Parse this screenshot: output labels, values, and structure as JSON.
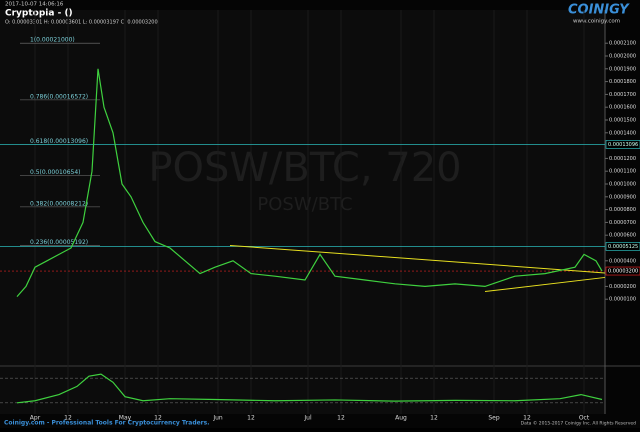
{
  "header": {
    "timestamp": "2017-10-07 14:06:16",
    "exchange": "Cryptopia - ()",
    "ohlc": "O: 0.00003301 H: 0.00003601 L: 0.00003197 C: 0.00003200",
    "logo": "COINIGY",
    "url": "www.coinigy.com"
  },
  "watermark": {
    "main": "POSW/BTC, 720",
    "sub": "POSW/BTC"
  },
  "footer": {
    "left": "Coinigy.com - Professional Tools For Cryptocurrency Traders.",
    "right": "Data © 2015-2017 Coinigy Inc. All Rights Reserved"
  },
  "chart_data": [
    {
      "type": "line",
      "color": "#3fd13f",
      "x": [
        -6,
        -3,
        0,
        4,
        8,
        12,
        16,
        19,
        21,
        23,
        26,
        29,
        32,
        36,
        40,
        45,
        50,
        55,
        60,
        66,
        72,
        80,
        90,
        95,
        100,
        110,
        120,
        130,
        140,
        150,
        160,
        170,
        180,
        183,
        187,
        189
      ],
      "values": [
        1.2e-05,
        2e-05,
        3.5e-05,
        4e-05,
        4.5e-05,
        5e-05,
        7e-05,
        0.00011,
        0.00019,
        0.00016,
        0.00014,
        0.0001,
        9e-05,
        7e-05,
        5.5e-05,
        5e-05,
        4e-05,
        3e-05,
        3.5e-05,
        4e-05,
        3e-05,
        2.8e-05,
        2.5e-05,
        4.5e-05,
        2.8e-05,
        2.5e-05,
        2.2e-05,
        2e-05,
        2.2e-05,
        2e-05,
        2.8e-05,
        3e-05,
        3.5e-05,
        4.5e-05,
        4e-05,
        3.2e-05
      ],
      "xlim": [
        -8,
        190
      ],
      "ylim": [
        0,
        0.00022
      ],
      "xticks": [
        {
          "value": 0,
          "label": "Apr"
        },
        {
          "value": 11,
          "label": "12"
        },
        {
          "value": 30,
          "label": "May"
        },
        {
          "value": 41,
          "label": "12"
        },
        {
          "value": 61,
          "label": "Jun"
        },
        {
          "value": 72,
          "label": "12"
        },
        {
          "value": 91,
          "label": "Jul"
        },
        {
          "value": 102,
          "label": "12"
        },
        {
          "value": 122,
          "label": "Aug"
        },
        {
          "value": 133,
          "label": "12"
        },
        {
          "value": 153,
          "label": "Sep"
        },
        {
          "value": 164,
          "label": "12"
        },
        {
          "value": 183,
          "label": "Oct"
        }
      ],
      "yticks": [
        {
          "value": 1e-05,
          "label": "0.0000100"
        },
        {
          "value": 2e-05,
          "label": "0.0000200"
        },
        {
          "value": 4e-05,
          "label": "0.0000400"
        },
        {
          "value": 6e-05,
          "label": "0.0000600"
        },
        {
          "value": 7e-05,
          "label": "0.0000700"
        },
        {
          "value": 8e-05,
          "label": "0.0000800"
        },
        {
          "value": 9e-05,
          "label": "0.0000900"
        },
        {
          "value": 0.0001,
          "label": "0.0001000"
        },
        {
          "value": 0.00011,
          "label": "0.0001100"
        },
        {
          "value": 0.00012,
          "label": "0.0001200"
        },
        {
          "value": 0.00014,
          "label": "0.0001400"
        },
        {
          "value": 0.00015,
          "label": "0.0001500"
        },
        {
          "value": 0.00016,
          "label": "0.0001600"
        },
        {
          "value": 0.00017,
          "label": "0.0001700"
        },
        {
          "value": 0.00018,
          "label": "0.0001800"
        },
        {
          "value": 0.00019,
          "label": "0.0001900"
        },
        {
          "value": 0.0002,
          "label": "0.0002000"
        },
        {
          "value": 0.00021,
          "label": "0.0002100"
        }
      ],
      "fib_levels": [
        {
          "label": "1(0.00021000)",
          "value": 0.00021
        },
        {
          "label": "0.786(0.00016572)",
          "value": 0.00016572
        },
        {
          "label": "0.618(0.00013096)",
          "value": 0.00013096
        },
        {
          "label": "0.5(0.00010654)",
          "value": 0.00010654
        },
        {
          "label": "0.382(0.00008212)",
          "value": 8.212e-05
        },
        {
          "label": "0.236(0.00005192)",
          "value": 5.192e-05
        }
      ],
      "price_levels": [
        {
          "label": "0.00013096",
          "value": 0.00013096,
          "color": "#2ab7b7"
        },
        {
          "label": "0.00005125",
          "value": 5.125e-05,
          "color": "#2ab7b7"
        },
        {
          "label": "0.00003200",
          "value": 3.2e-05,
          "color": "#e02020"
        }
      ],
      "trendlines": [
        {
          "color": "#e8e020",
          "x": [
            65,
            190
          ],
          "values": [
            5.2e-05,
            3.05e-05
          ]
        },
        {
          "color": "#e8e020",
          "x": [
            150,
            190
          ],
          "values": [
            1.6e-05,
            2.7e-05
          ]
        }
      ]
    },
    {
      "type": "line",
      "color": "#3fd13f",
      "x": [
        -6,
        0,
        8,
        14,
        18,
        22,
        26,
        30,
        36,
        45,
        60,
        80,
        100,
        120,
        140,
        160,
        175,
        182,
        189
      ],
      "values": [
        20,
        25,
        40,
        60,
        85,
        90,
        70,
        35,
        25,
        30,
        28,
        25,
        27,
        24,
        26,
        25,
        30,
        40,
        28
      ],
      "xlim": [
        -8,
        190
      ],
      "ylim": [
        0,
        100
      ],
      "levels": [
        20,
        80
      ]
    }
  ]
}
